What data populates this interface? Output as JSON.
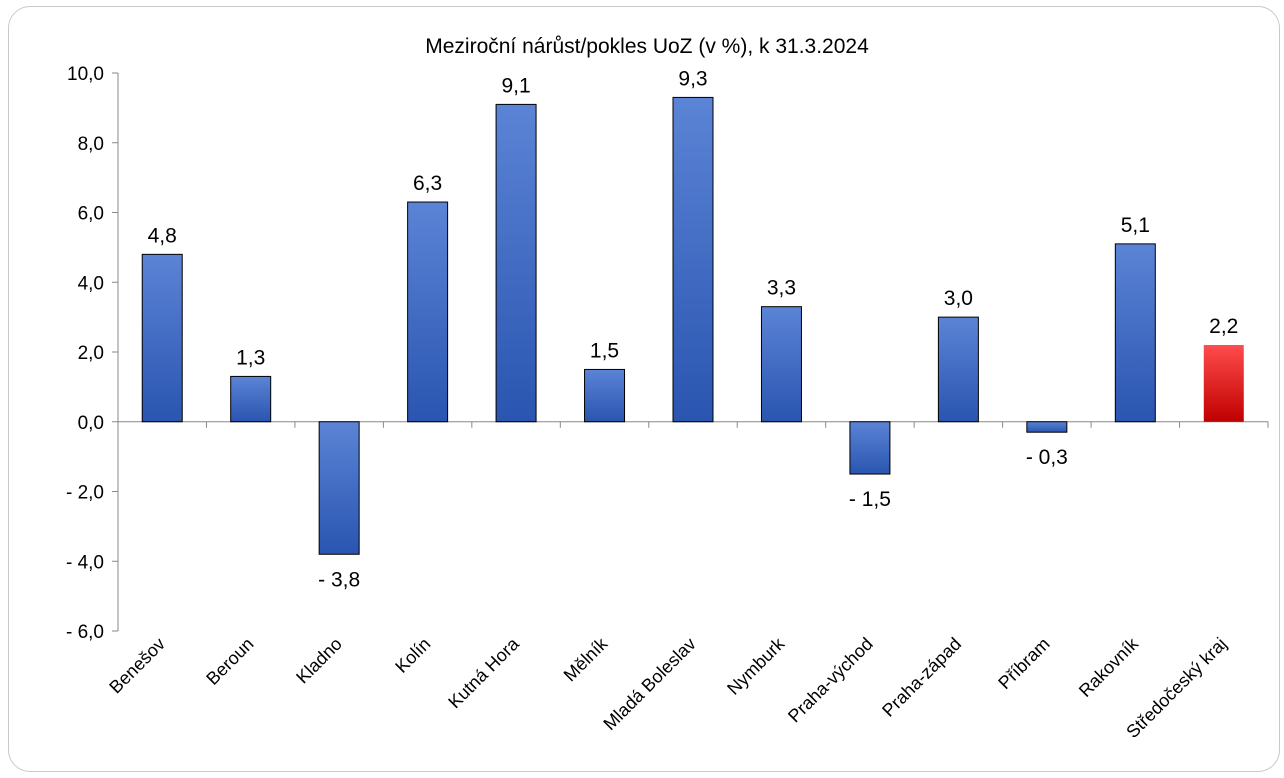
{
  "chart_data": {
    "type": "bar",
    "title": "Meziroční nárůst/pokles UoZ (v %), k 31.3.2024",
    "xlabel": "",
    "ylabel": "",
    "ylim": [
      -6,
      10
    ],
    "y_ticks": [
      "10,0",
      "8,0",
      "6,0",
      "4,0",
      "2,0",
      "0,0",
      "- 2,0",
      "- 4,0",
      "- 6,0"
    ],
    "y_tick_values": [
      10,
      8,
      6,
      4,
      2,
      0,
      -2,
      -4,
      -6
    ],
    "categories": [
      "Benešov",
      "Beroun",
      "Kladno",
      "Kolín",
      "Kutná Hora",
      "Mělník",
      "Mladá Boleslav",
      "Nymburk",
      "Praha-východ",
      "Praha-západ",
      "Příbram",
      "Rakovník",
      "Středočeský kraj"
    ],
    "values": [
      4.8,
      1.3,
      -3.8,
      6.3,
      9.1,
      1.5,
      9.3,
      3.3,
      -1.5,
      3.0,
      -0.3,
      5.1,
      2.2
    ],
    "data_labels": [
      "4,8",
      "1,3",
      "- 3,8",
      "6,3",
      "9,1",
      "1,5",
      "9,3",
      "3,3",
      "- 1,5",
      "3,0",
      "- 0,3",
      "5,1",
      "2,2"
    ],
    "highlight_category": "Středočeský kraj",
    "colors": {
      "bar": "#3a68c4",
      "bar_light": "#5b84d6",
      "bar_dark": "#2a55b0",
      "highlight": "#ff4d4d",
      "highlight_dark": "#c00000",
      "axis": "#888888"
    },
    "grid": false,
    "legend": "none"
  }
}
